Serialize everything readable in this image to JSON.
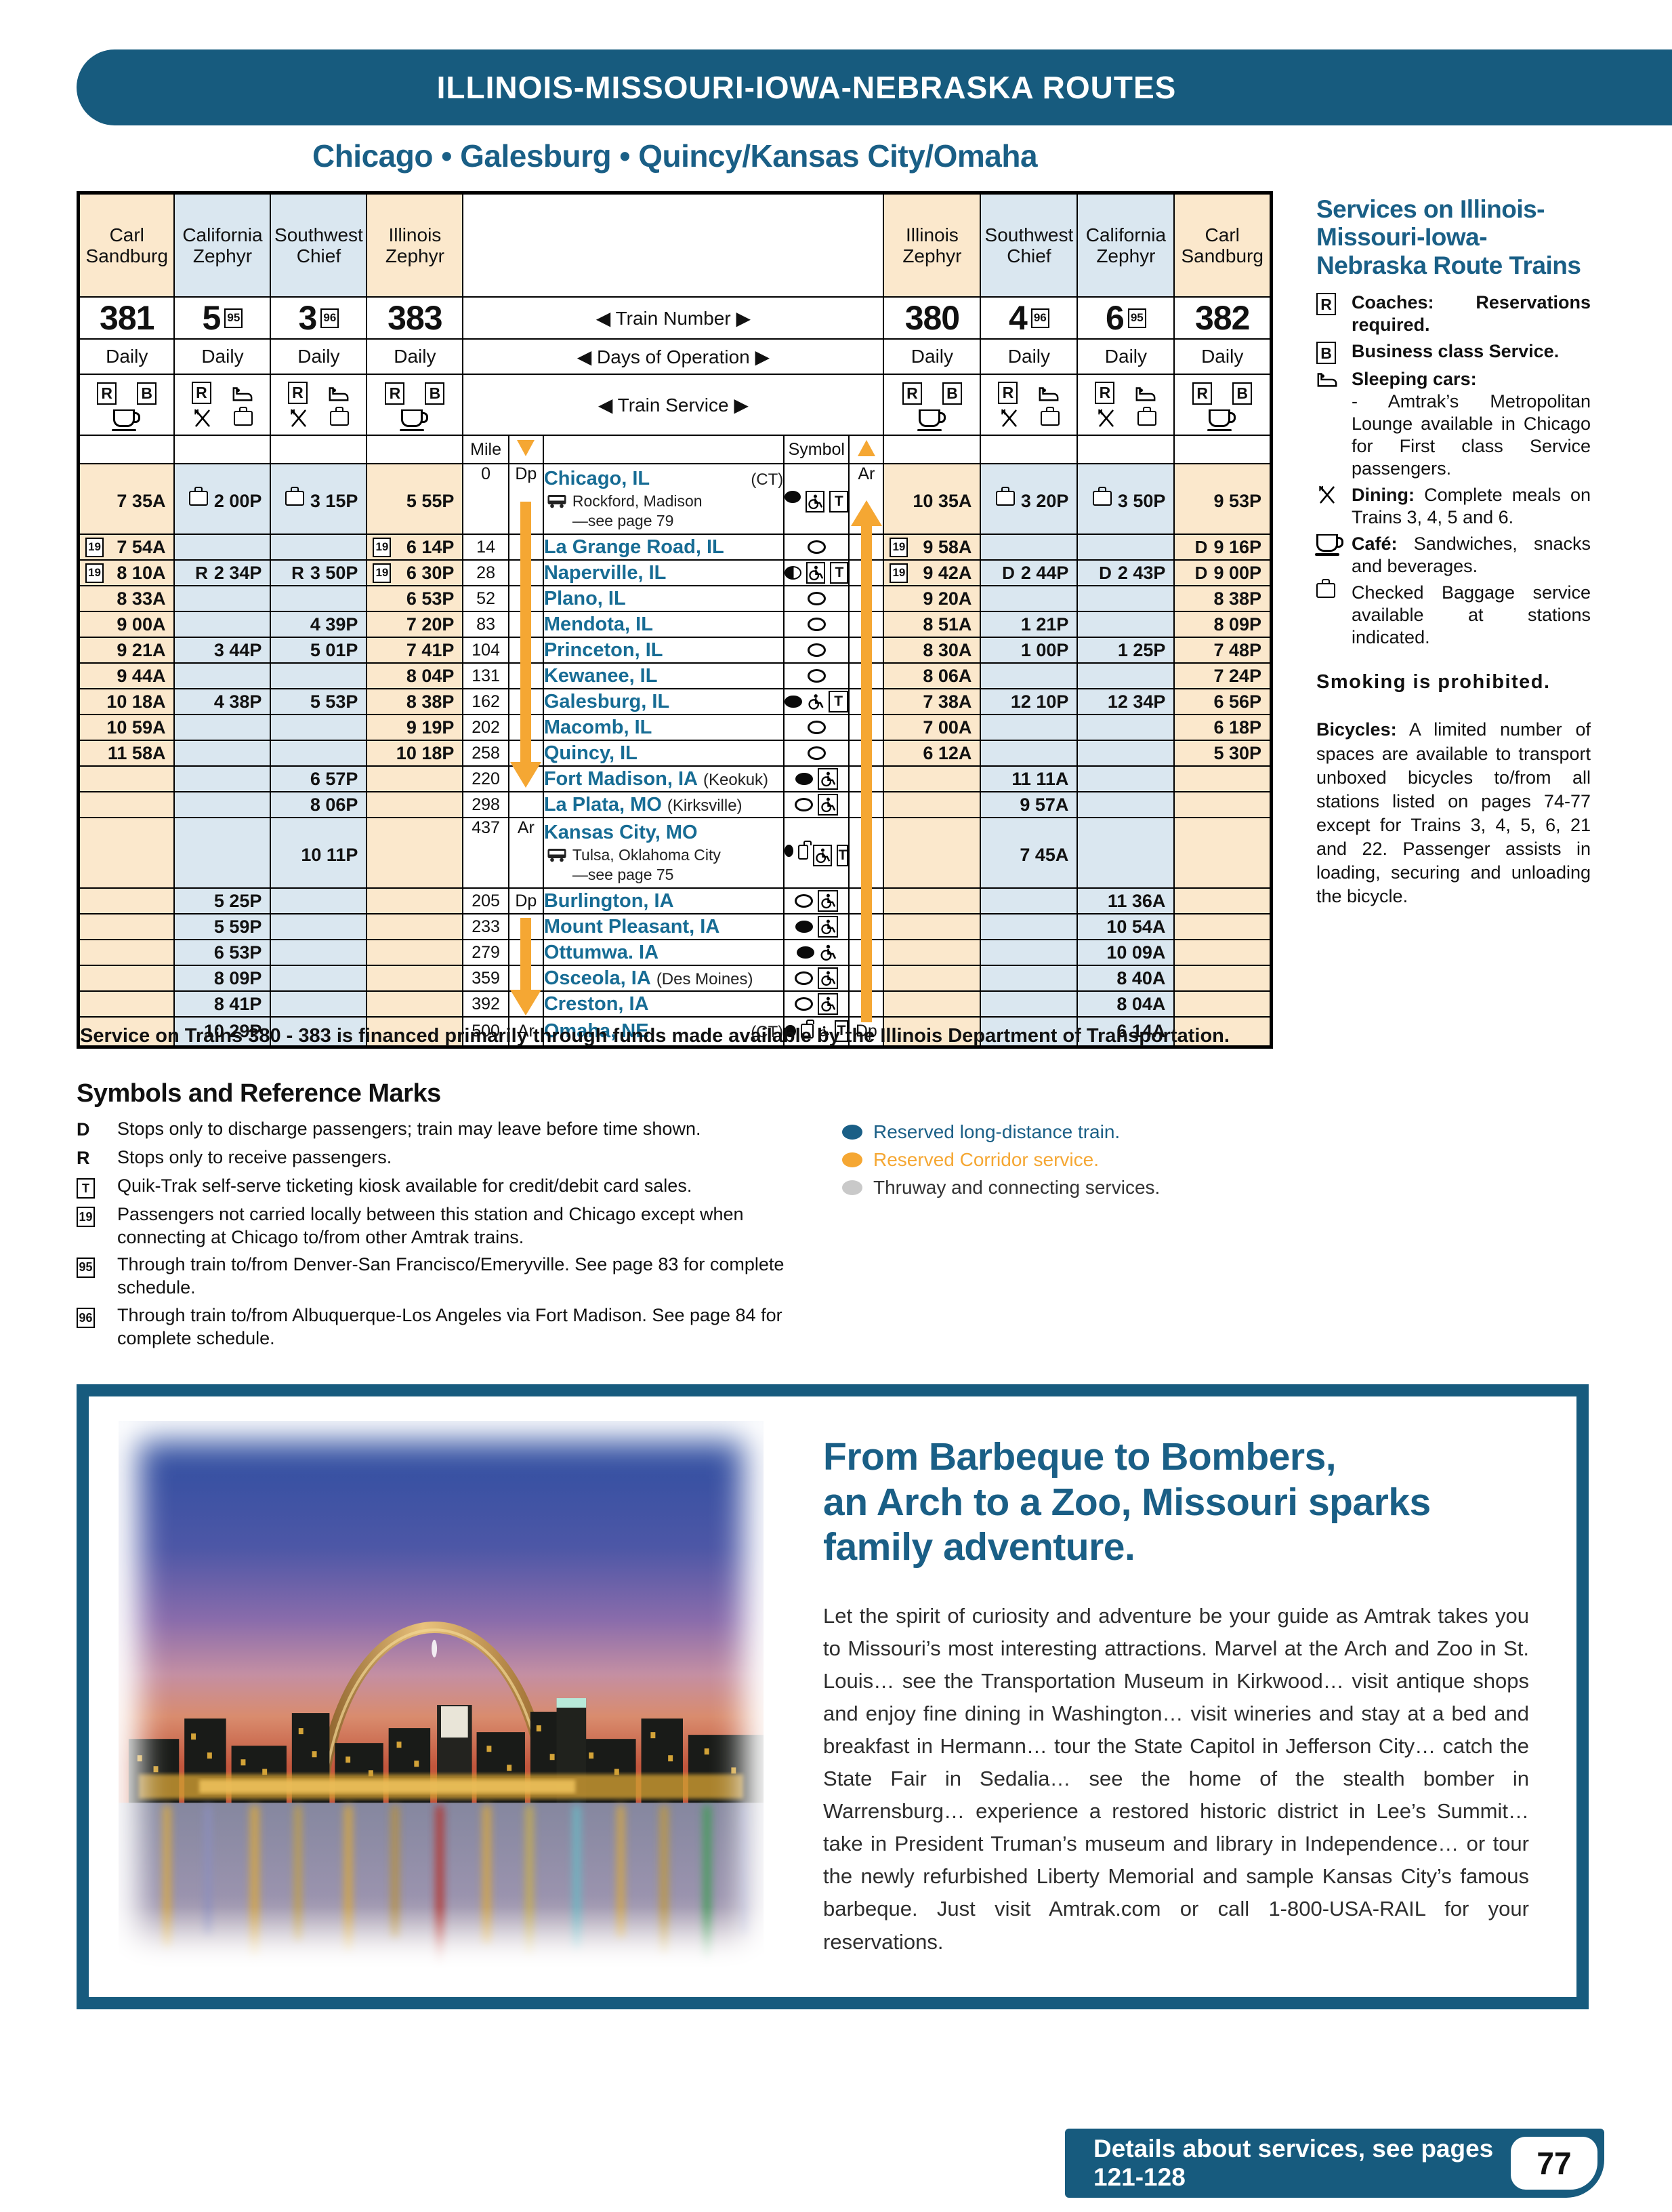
{
  "page": {
    "banner_title": "ILLINOIS-MISSOURI-IOWA-NEBRASKA ROUTES",
    "subtitle": "Chicago • Galesburg • Quincy/Kansas City/Omaha",
    "footer_note": "Details about services, see pages 121-128",
    "page_number": "77"
  },
  "colors": {
    "brand_blue": "#175B7E",
    "heading_blue": "#1A5F86",
    "station_teal": "#176C94",
    "peach_column": "#FBE8CC",
    "blue_column": "#DAE7F0",
    "arrow_orange": "#F5A733",
    "legend_gray": "#C9C9C9"
  },
  "timetable": {
    "header_labels": {
      "train_number": "◀ Train Number ▶",
      "days": "◀ Days of Operation ▶",
      "service": "◀ Train Service ▶",
      "mile": "Mile",
      "symbol": "Symbol",
      "dp": "Dp",
      "ar": "Ar"
    },
    "columns_left": [
      {
        "name": "Carl Sandburg",
        "number": "381",
        "ref": "",
        "days": "Daily",
        "tint": "peach",
        "svc": [
          "R",
          "B",
          "cafe"
        ]
      },
      {
        "name": "California Zephyr",
        "number": "5",
        "ref": "95",
        "days": "Daily",
        "tint": "blu",
        "svc": [
          "R",
          "sleeper",
          "dining",
          "bag"
        ]
      },
      {
        "name": "Southwest Chief",
        "number": "3",
        "ref": "96",
        "days": "Daily",
        "tint": "blu",
        "svc": [
          "R",
          "sleeper",
          "dining",
          "bag"
        ]
      },
      {
        "name": "Illinois Zephyr",
        "number": "383",
        "ref": "",
        "days": "Daily",
        "tint": "peach",
        "svc": [
          "R",
          "B",
          "cafe"
        ]
      }
    ],
    "columns_right": [
      {
        "name": "Illinois Zephyr",
        "number": "380",
        "ref": "",
        "days": "Daily",
        "tint": "peach",
        "svc": [
          "R",
          "B",
          "cafe"
        ]
      },
      {
        "name": "Southwest Chief",
        "number": "4",
        "ref": "96",
        "days": "Daily",
        "tint": "blu",
        "svc": [
          "R",
          "sleeper",
          "dining",
          "bag"
        ]
      },
      {
        "name": "California Zephyr",
        "number": "6",
        "ref": "95",
        "days": "Daily",
        "tint": "blu",
        "svc": [
          "R",
          "sleeper",
          "dining",
          "bag"
        ]
      },
      {
        "name": "Carl Sandburg",
        "number": "382",
        "ref": "",
        "days": "Daily",
        "tint": "peach",
        "svc": [
          "R",
          "B",
          "cafe"
        ]
      }
    ],
    "rows": [
      {
        "name": "Chicago, IL",
        "suffix": "(CT)",
        "sufright": true,
        "note": [
          "Rockford, Madison",
          "—see page 79"
        ],
        "mile": "0",
        "dl": "Dp",
        "dr": "Ar",
        "l": [
          "7 35A",
          "{bag} 2 00P",
          "{bag} 3 15P",
          "5 55P"
        ],
        "r": [
          "10 35A",
          "{bag} 3 20P",
          "{bag} 3 50P",
          "9 53P"
        ],
        "sym": [
          "dot",
          "wheelbox",
          "tbox"
        ]
      },
      {
        "name": "La Grange Road, IL",
        "mile": "14",
        "l": [
          "[19] 7 54A",
          "",
          "",
          "[19] 6 14P"
        ],
        "r": [
          "[19] 9 58A",
          "",
          "",
          "D 9 16P"
        ],
        "sym": [
          "circle"
        ]
      },
      {
        "name": "Naperville, IL",
        "mile": "28",
        "l": [
          "[19] 8 10A",
          "R 2 34P",
          "R 3 50P",
          "[19] 6 30P"
        ],
        "r": [
          "[19] 9 42A",
          "D 2 44P",
          "D 2 43P",
          "D 9 00P"
        ],
        "sym": [
          "half",
          "wheelbox",
          "tbox"
        ]
      },
      {
        "name": "Plano, IL",
        "mile": "52",
        "l": [
          "8 33A",
          "",
          "",
          "6 53P"
        ],
        "r": [
          "9 20A",
          "",
          "",
          "8 38P"
        ],
        "sym": [
          "circle"
        ]
      },
      {
        "name": "Mendota, IL",
        "mile": "83",
        "l": [
          "9 00A",
          "",
          "4 39P",
          "7 20P"
        ],
        "r": [
          "8 51A",
          "1 21P",
          "",
          "8 09P"
        ],
        "sym": [
          "circle"
        ]
      },
      {
        "name": "Princeton, IL",
        "mile": "104",
        "l": [
          "9 21A",
          "3 44P",
          "5 01P",
          "7 41P"
        ],
        "r": [
          "8 30A",
          "1 00P",
          "1 25P",
          "7 48P"
        ],
        "sym": [
          "circle"
        ]
      },
      {
        "name": "Kewanee, IL",
        "mile": "131",
        "l": [
          "9 44A",
          "",
          "",
          "8 04P"
        ],
        "r": [
          "8 06A",
          "",
          "",
          "7 24P"
        ],
        "sym": [
          "circle"
        ]
      },
      {
        "name": "Galesburg, IL",
        "mile": "162",
        "l": [
          "10 18A",
          "4 38P",
          "5 53P",
          "8 38P"
        ],
        "r": [
          "7 38A",
          "12 10P",
          "12 34P",
          "6 56P"
        ],
        "sym": [
          "dot",
          "wheel",
          "tbox"
        ]
      },
      {
        "name": "Macomb, IL",
        "mile": "202",
        "l": [
          "10 59A",
          "",
          "",
          "9 19P"
        ],
        "r": [
          "7 00A",
          "",
          "",
          "6 18P"
        ],
        "sym": [
          "circle"
        ]
      },
      {
        "name": "Quincy, IL",
        "mile": "258",
        "l": [
          "11 58A",
          "",
          "",
          "10 18P"
        ],
        "r": [
          "6 12A",
          "",
          "",
          "5 30P"
        ],
        "sym": [
          "circle"
        ]
      },
      {
        "name": "Fort Madison, IA",
        "suffix": "(Keokuk)",
        "mile": "220",
        "l": [
          "",
          "",
          "6 57P",
          ""
        ],
        "r": [
          "",
          "11 11A",
          "",
          ""
        ],
        "sym": [
          "dot",
          "wheelbox"
        ]
      },
      {
        "name": "La Plata, MO",
        "suffix": "(Kirksville)",
        "mile": "298",
        "l": [
          "",
          "",
          "8 06P",
          ""
        ],
        "r": [
          "",
          "9 57A",
          "",
          ""
        ],
        "sym": [
          "circle",
          "wheelbox"
        ]
      },
      {
        "name": "Kansas City, MO",
        "note": [
          "Tulsa, Oklahoma City",
          "—see page 75"
        ],
        "mile": "437",
        "dl": "Ar",
        "l": [
          "",
          "",
          "10 11P",
          ""
        ],
        "r": [
          "",
          "7 45A",
          "",
          ""
        ],
        "sym": [
          "dot",
          "bag",
          "wheelbox",
          "tbox"
        ]
      },
      {
        "name": "Burlington, IA",
        "mile": "205",
        "dl": "Dp",
        "l": [
          "",
          "5 25P",
          "",
          ""
        ],
        "r": [
          "",
          "",
          "11 36A",
          ""
        ],
        "sym": [
          "circle",
          "wheelbox"
        ]
      },
      {
        "name": "Mount Pleasant, IA",
        "mile": "233",
        "l": [
          "",
          "5 59P",
          "",
          ""
        ],
        "r": [
          "",
          "",
          "10 54A",
          ""
        ],
        "sym": [
          "dot",
          "wheelbox"
        ]
      },
      {
        "name": "Ottumwa. IA",
        "mile": "279",
        "l": [
          "",
          "6 53P",
          "",
          ""
        ],
        "r": [
          "",
          "",
          "10 09A",
          ""
        ],
        "sym": [
          "dot",
          "wheel"
        ]
      },
      {
        "name": "Osceola, IA",
        "suffix": "(Des Moines)",
        "mile": "359",
        "l": [
          "",
          "8 09P",
          "",
          ""
        ],
        "r": [
          "",
          "",
          "8 40A",
          ""
        ],
        "sym": [
          "circle",
          "wheelbox"
        ]
      },
      {
        "name": "Creston, IA",
        "mile": "392",
        "l": [
          "",
          "8 41P",
          "",
          ""
        ],
        "r": [
          "",
          "",
          "8 04A",
          ""
        ],
        "sym": [
          "circle",
          "wheelbox"
        ]
      },
      {
        "name": "Omaha, NE",
        "suffix": "(CT)",
        "sufright": true,
        "mile": "500",
        "dl": "Ar",
        "dr": "Dp",
        "l": [
          "",
          "10 29P",
          "",
          ""
        ],
        "r": [
          "",
          "",
          "6 14A",
          ""
        ],
        "sym": [
          "dot",
          "bag",
          "wheel",
          "tbox"
        ]
      }
    ],
    "footnote": "Service on Trains 380 - 383 is financed primarily through funds made available by the Illinois Department of Transportation."
  },
  "services_sidebar": {
    "title": "Services on Illinois-Missouri-Iowa-Nebraska Route Trains",
    "items": [
      {
        "icon": "rbox",
        "lead": "Coaches:",
        "text": "Reservations required.",
        "allbold": true
      },
      {
        "icon": "bbox",
        "lead": "",
        "text": "Business class Service.",
        "allbold": true
      },
      {
        "icon": "sleeper",
        "lead": "Sleeping cars:",
        "text": "",
        "allbold": true,
        "sub": "- Amtrak’s Metropolitan Lounge available in Chicago for First class Service passengers."
      },
      {
        "icon": "dining",
        "lead": "Dining:",
        "text": "Complete meals on Trains 3, 4, 5 and 6."
      },
      {
        "icon": "cafe",
        "lead": "Café:",
        "text": "Sandwiches, snacks and beverages."
      },
      {
        "icon": "bag",
        "lead": "",
        "text": "Checked Baggage service available at stations indicated."
      }
    ],
    "smoking": "Smoking is prohibited.",
    "bicycles_lead": "Bicycles:",
    "bicycles_text": "A limited number of spaces are available to transport unboxed bicycles to/from all stations listed on pages 74-77 except for Trains 3, 4, 5, 6, 21 and 22. Passenger assists in loading, securing and unloading the bicycle."
  },
  "symbols_section": {
    "title": "Symbols and Reference Marks",
    "items": [
      {
        "mark": "D",
        "boxed": false,
        "text": "Stops only to discharge passengers; train may leave before time shown."
      },
      {
        "mark": "R",
        "boxed": false,
        "text": "Stops only to receive passengers."
      },
      {
        "mark": "T",
        "boxed": true,
        "text": "Quik-Trak self-serve ticketing kiosk available for credit/debit card sales."
      },
      {
        "mark": "19",
        "boxed": true,
        "text": "Passengers not carried locally between this station and Chicago except when connecting at Chicago to/from other Amtrak trains."
      },
      {
        "mark": "95",
        "boxed": true,
        "text": "Through train to/from Denver-San Francisco/Emeryville. See page 83 for complete schedule."
      },
      {
        "mark": "96",
        "boxed": true,
        "text": "Through train to/from Albuquerque-Los Angeles via Fort Madison. See page 84 for complete schedule."
      }
    ],
    "legend": [
      {
        "color": "#1A5F86",
        "text_color": "#1A5F86",
        "text": "Reserved long-distance train."
      },
      {
        "color": "#F5A733",
        "text_color": "#F5A733",
        "text": "Reserved Corridor service."
      },
      {
        "color": "#C9C9C9",
        "text_color": "#333333",
        "text": "Thruway and connecting services."
      }
    ]
  },
  "promo": {
    "headline_lines": [
      "From Barbeque to Bombers,",
      "an Arch to a Zoo, Missouri sparks",
      "family adventure."
    ],
    "body": "Let the spirit of curiosity and adventure be your guide as Amtrak takes you to Missouri’s most interesting attractions. Marvel at the Arch and Zoo in St. Louis… see the Transportation Museum in Kirkwood… visit antique shops and enjoy fine dining in Washington… visit wineries and stay at a bed and breakfast in Hermann… tour the State Capitol in Jefferson City… catch the State Fair in Sedalia… see the home of the stealth bomber in Warrensburg… experience a restored historic district in Lee’s Summit… take in President Truman’s museum and library in Independence… or tour the newly refurbished Liberty Memorial and sample Kansas City’s famous barbeque. Just visit Amtrak.com or call 1-800-USA-RAIL for your reservations."
  }
}
